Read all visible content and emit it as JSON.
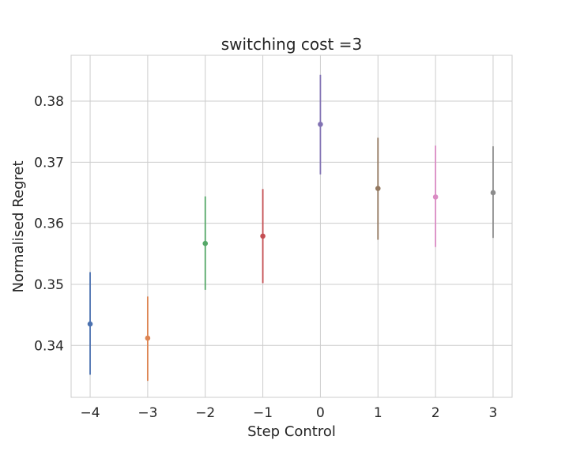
{
  "chart_data": {
    "type": "scatter",
    "title": "switching cost =3",
    "xlabel": "Step Control",
    "ylabel": "Normalised Regret",
    "xlim": [
      -4.33,
      3.33
    ],
    "ylim": [
      0.3315,
      0.3875
    ],
    "x_ticks": [
      -4,
      -3,
      -2,
      -1,
      0,
      1,
      2,
      3
    ],
    "x_tick_labels": [
      "−4",
      "−3",
      "−2",
      "−1",
      "0",
      "1",
      "2",
      "3"
    ],
    "y_ticks": [
      0.34,
      0.35,
      0.36,
      0.37,
      0.38
    ],
    "y_tick_labels": [
      "0.34",
      "0.35",
      "0.36",
      "0.37",
      "0.38"
    ],
    "grid": true,
    "points": [
      {
        "x": -4,
        "y": 0.3435,
        "err_low": 0.3352,
        "err_high": 0.352,
        "color": "#4c72b0"
      },
      {
        "x": -3,
        "y": 0.3412,
        "err_low": 0.3342,
        "err_high": 0.348,
        "color": "#dd8452"
      },
      {
        "x": -2,
        "y": 0.3567,
        "err_low": 0.3491,
        "err_high": 0.3644,
        "color": "#55a868"
      },
      {
        "x": -1,
        "y": 0.3579,
        "err_low": 0.3502,
        "err_high": 0.3656,
        "color": "#c44e52"
      },
      {
        "x": 0,
        "y": 0.3762,
        "err_low": 0.368,
        "err_high": 0.3843,
        "color": "#8172b3"
      },
      {
        "x": 1,
        "y": 0.3657,
        "err_low": 0.3573,
        "err_high": 0.374,
        "color": "#937860"
      },
      {
        "x": 2,
        "y": 0.3643,
        "err_low": 0.3561,
        "err_high": 0.3727,
        "color": "#da8bc3"
      },
      {
        "x": 3,
        "y": 0.365,
        "err_low": 0.3576,
        "err_high": 0.3726,
        "color": "#8c8c8c"
      }
    ]
  }
}
